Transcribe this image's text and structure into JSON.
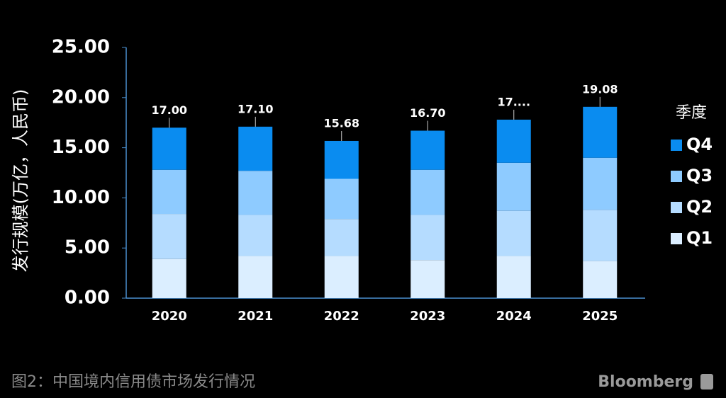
{
  "chart_data": {
    "type": "stacked-bar",
    "y_label": "发行规模(万亿，人民币)",
    "caption": "图2：中国境内信用债市场发行情况",
    "source": "Bloomberg",
    "legend_title": "季度",
    "categories": [
      "2020",
      "2021",
      "2022",
      "2023",
      "2024",
      "2025"
    ],
    "series": [
      {
        "name": "Q1",
        "color": "#dbeeff",
        "values": [
          3.9,
          4.2,
          4.2,
          3.8,
          4.2,
          3.7
        ]
      },
      {
        "name": "Q2",
        "color": "#b5dcff",
        "values": [
          4.5,
          4.1,
          3.7,
          4.5,
          4.5,
          5.1
        ]
      },
      {
        "name": "Q3",
        "color": "#8ecbff",
        "values": [
          4.4,
          4.4,
          4.0,
          4.5,
          4.8,
          5.2
        ]
      },
      {
        "name": "Q4",
        "color": "#0a8cf0",
        "values": [
          4.2,
          4.4,
          3.78,
          3.9,
          4.3,
          5.08
        ]
      }
    ],
    "totals": [
      17,
      17.1,
      15.68,
      16.7,
      17.8,
      19.08
    ],
    "total_labels": [
      "17.00",
      "17.10",
      "15.68",
      "16.70",
      "17....",
      "19.08"
    ],
    "ylim": [
      0,
      25
    ],
    "yticks": [
      {
        "value": 0,
        "label": "0.00"
      },
      {
        "value": 5,
        "label": "5.00"
      },
      {
        "value": 10,
        "label": "10.00"
      },
      {
        "value": 15,
        "label": "15.00"
      },
      {
        "value": 20,
        "label": "20.00"
      },
      {
        "value": 25,
        "label": "25.00"
      }
    ]
  }
}
